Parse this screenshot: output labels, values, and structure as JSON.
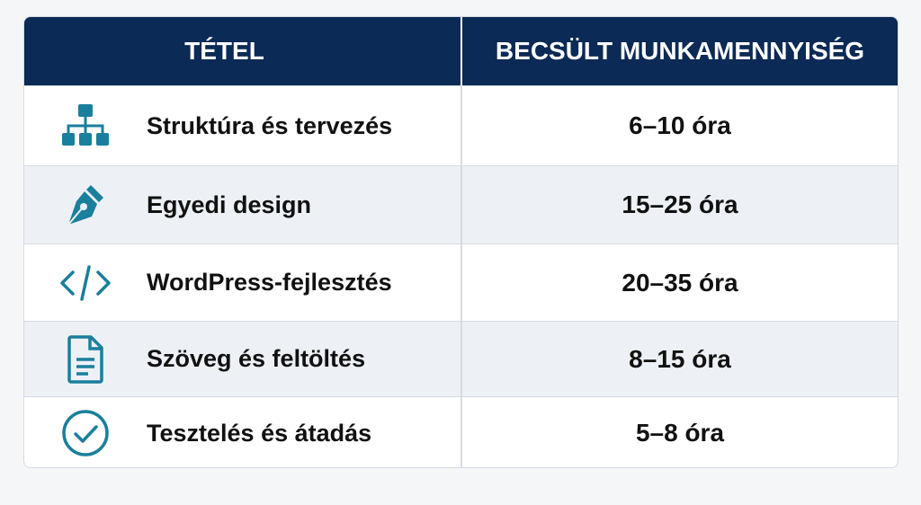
{
  "table": {
    "columns": [
      "TÉTEL",
      "BECSÜLT MUNKAMENNYISÉG"
    ],
    "rows": [
      [
        "Struktúra és tervezés",
        "6–10 óra"
      ],
      [
        "Egyedi design",
        "15–25 óra"
      ],
      [
        "WordPress-fejlesztés",
        "20–35 óra"
      ],
      [
        "Szöveg és feltöltés",
        "8–15 óra"
      ],
      [
        "Tesztelés és átadás",
        "5–8 óra"
      ]
    ]
  }
}
